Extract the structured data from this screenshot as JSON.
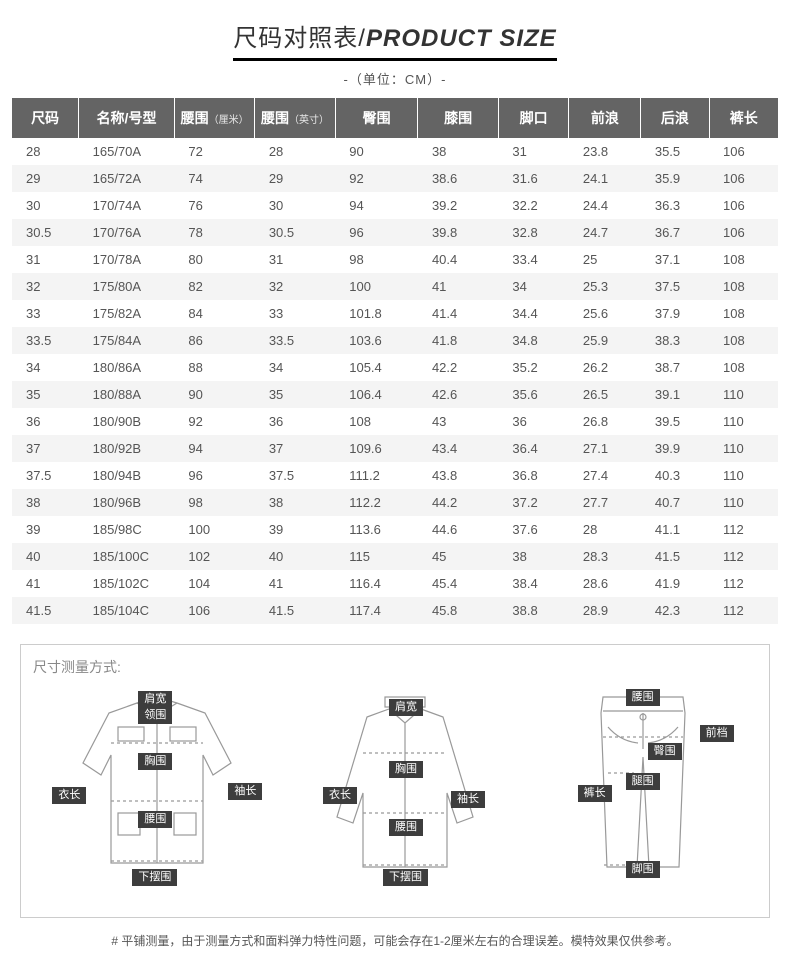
{
  "title": {
    "cn": "尺码对照表/",
    "en": "PRODUCT SIZE"
  },
  "unit": "-（单位：CM）-",
  "columns": [
    "尺码",
    "名称/号型",
    "腰围",
    "（厘米）",
    "腰围",
    "（英寸）",
    "臀围",
    "膝围",
    "脚口",
    "前浪",
    "后浪",
    "裤长"
  ],
  "rows": [
    [
      "28",
      "165/70A",
      "72",
      "28",
      "90",
      "38",
      "31",
      "23.8",
      "35.5",
      "106"
    ],
    [
      "29",
      "165/72A",
      "74",
      "29",
      "92",
      "38.6",
      "31.6",
      "24.1",
      "35.9",
      "106"
    ],
    [
      "30",
      "170/74A",
      "76",
      "30",
      "94",
      "39.2",
      "32.2",
      "24.4",
      "36.3",
      "106"
    ],
    [
      "30.5",
      "170/76A",
      "78",
      "30.5",
      "96",
      "39.8",
      "32.8",
      "24.7",
      "36.7",
      "106"
    ],
    [
      "31",
      "170/78A",
      "80",
      "31",
      "98",
      "40.4",
      "33.4",
      "25",
      "37.1",
      "108"
    ],
    [
      "32",
      "175/80A",
      "82",
      "32",
      "100",
      "41",
      "34",
      "25.3",
      "37.5",
      "108"
    ],
    [
      "33",
      "175/82A",
      "84",
      "33",
      "101.8",
      "41.4",
      "34.4",
      "25.6",
      "37.9",
      "108"
    ],
    [
      "33.5",
      "175/84A",
      "86",
      "33.5",
      "103.6",
      "41.8",
      "34.8",
      "25.9",
      "38.3",
      "108"
    ],
    [
      "34",
      "180/86A",
      "88",
      "34",
      "105.4",
      "42.2",
      "35.2",
      "26.2",
      "38.7",
      "108"
    ],
    [
      "35",
      "180/88A",
      "90",
      "35",
      "106.4",
      "42.6",
      "35.6",
      "26.5",
      "39.1",
      "110"
    ],
    [
      "36",
      "180/90B",
      "92",
      "36",
      "108",
      "43",
      "36",
      "26.8",
      "39.5",
      "110"
    ],
    [
      "37",
      "180/92B",
      "94",
      "37",
      "109.6",
      "43.4",
      "36.4",
      "27.1",
      "39.9",
      "110"
    ],
    [
      "37.5",
      "180/94B",
      "96",
      "37.5",
      "111.2",
      "43.8",
      "36.8",
      "27.4",
      "40.3",
      "110"
    ],
    [
      "38",
      "180/96B",
      "98",
      "38",
      "112.2",
      "44.2",
      "37.2",
      "27.7",
      "40.7",
      "110"
    ],
    [
      "39",
      "185/98C",
      "100",
      "39",
      "113.6",
      "44.6",
      "37.6",
      "28",
      "41.1",
      "112"
    ],
    [
      "40",
      "185/100C",
      "102",
      "40",
      "115",
      "45",
      "38",
      "28.3",
      "41.5",
      "112"
    ],
    [
      "41",
      "185/102C",
      "104",
      "41",
      "116.4",
      "45.4",
      "38.4",
      "28.6",
      "41.9",
      "112"
    ],
    [
      "41.5",
      "185/104C",
      "106",
      "41.5",
      "117.4",
      "45.8",
      "38.8",
      "28.9",
      "42.3",
      "112"
    ]
  ],
  "diagTitle": "尺寸测量方式:",
  "labels": {
    "shoulder": "肩宽",
    "collar": "领围",
    "chest": "胸围",
    "length": "衣长",
    "sleeve": "袖长",
    "waist": "腰围",
    "hem": "下摆围",
    "hip": "臀围",
    "thigh": "腿围",
    "pantLen": "裤长",
    "crotch": "前档",
    "legOpen": "脚围"
  },
  "footnote": "# 平铺测量，由于测量方式和面料弹力特性问题，可能会存在1-2厘米左右的合理误差。模特效果仅供参考。"
}
